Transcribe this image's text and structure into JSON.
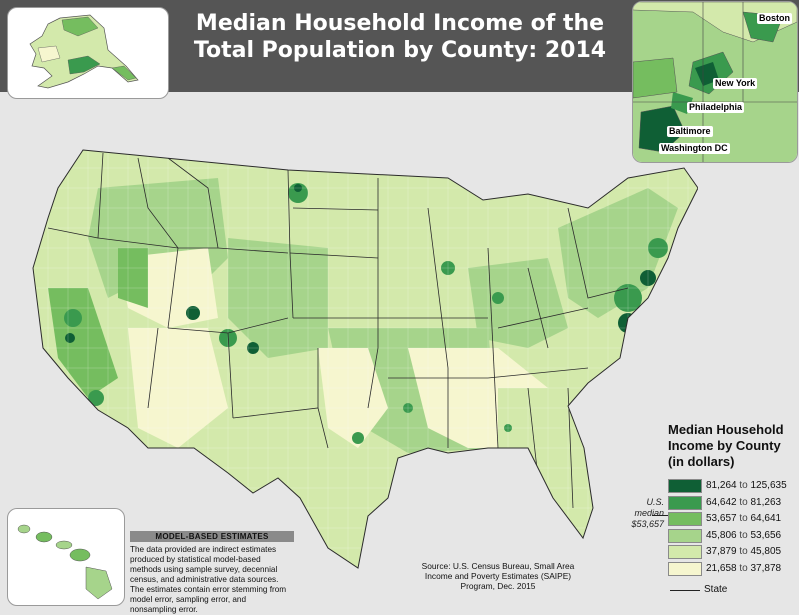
{
  "title": {
    "line1": "Median Household Income of the",
    "line2": "Total Population by County: 2014"
  },
  "colors": {
    "class1": "#0f5f35",
    "class2": "#3a9a4e",
    "class3": "#75bd5f",
    "class4": "#a6d48b",
    "class5": "#d3e9ab",
    "class6": "#f6f6cf",
    "state_boundary": "#2b2b2b",
    "header": "#555555",
    "background": "#e6e6e6"
  },
  "insets": {
    "alaska": "alaska-inset",
    "hawaii": "hawaii-inset",
    "northeast": {
      "cities": [
        "Boston",
        "New York",
        "Philadelphia",
        "Baltimore",
        "Washington DC"
      ]
    }
  },
  "legend": {
    "title_line1": "Median Household",
    "title_line2": "Income by County",
    "title_line3": "(in dollars)",
    "classes": [
      {
        "low": "81,264",
        "to": "to",
        "high": "125,635"
      },
      {
        "low": "64,642",
        "to": "to",
        "high": "81,263"
      },
      {
        "low": "53,657",
        "to": "to",
        "high": "64,641"
      },
      {
        "low": "45,806",
        "to": "to",
        "high": "53,656"
      },
      {
        "low": "37,879",
        "to": "to",
        "high": "45,805"
      },
      {
        "low": "21,658",
        "to": "to",
        "high": "37,878"
      }
    ],
    "us_median_line1": "U.S.",
    "us_median_line2": "median",
    "us_median_value": "$53,657",
    "state_label": "State"
  },
  "model_based": {
    "title": "MODEL-BASED ESTIMATES",
    "text": "The data provided are indirect estimates produced by statistical model-based methods using sample survey, decennial census, and administrative data sources. The estimates contain error stemming from model error, sampling error, and nonsampling error."
  },
  "source": {
    "text": "Source: U.S. Census Bureau, Small Area Income and Poverty Estimates (SAIPE) Program, Dec. 2015"
  }
}
